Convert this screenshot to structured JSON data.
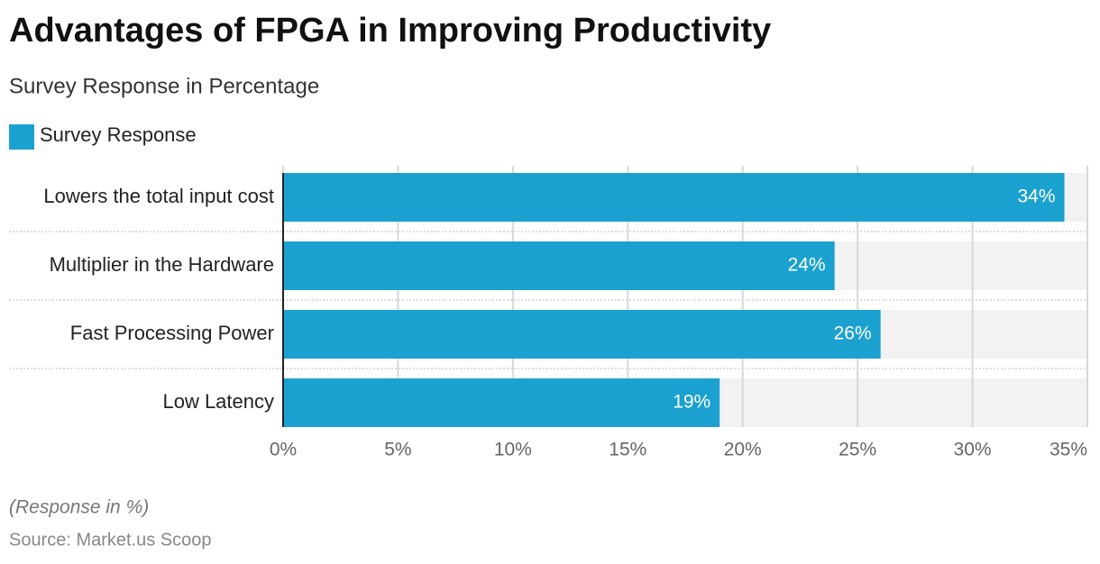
{
  "chart_data": {
    "type": "bar",
    "orientation": "horizontal",
    "title": "Advantages of FPGA in Improving Productivity",
    "subtitle": "Survey Response in Percentage",
    "categories": [
      "Lowers the total input cost",
      "Multiplier in the Hardware",
      "Fast Processing Power",
      "Low Latency"
    ],
    "series": [
      {
        "name": "Survey Response",
        "color": "#1ba1d0",
        "values": [
          34,
          24,
          26,
          19
        ],
        "value_labels": [
          "34%",
          "24%",
          "26%",
          "19%"
        ]
      }
    ],
    "xlim": [
      0,
      35
    ],
    "xticks": [
      {
        "value": 0,
        "label": "0%"
      },
      {
        "value": 5,
        "label": "5%"
      },
      {
        "value": 10,
        "label": "10%"
      },
      {
        "value": 15,
        "label": "15%"
      },
      {
        "value": 20,
        "label": "20%"
      },
      {
        "value": 25,
        "label": "25%"
      },
      {
        "value": 30,
        "label": "30%"
      },
      {
        "value": 35,
        "label": "35%"
      }
    ],
    "grid": true,
    "note": "(Response in %)",
    "source": "Source: Market.us Scoop"
  }
}
